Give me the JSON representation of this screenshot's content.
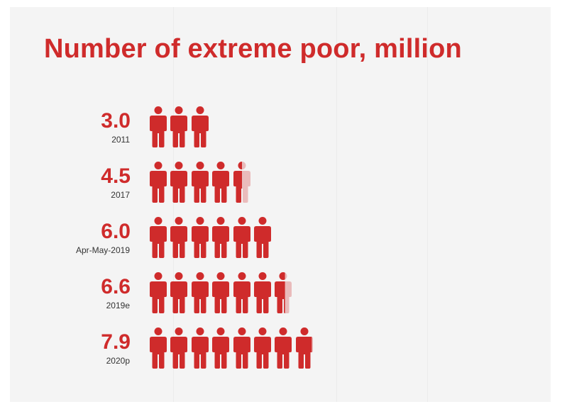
{
  "colors": {
    "accent": "#cf2b2b",
    "label": "#333333",
    "background": "#f4f4f4"
  },
  "icons": {
    "unit": "person-icon"
  },
  "chart_data": {
    "type": "pictogram",
    "title": "Number of extreme poor, million",
    "unit": "million",
    "icon_value": 1,
    "categories": [
      "2011",
      "2017",
      "Apr-May-2019",
      "2019e",
      "2020p"
    ],
    "values": [
      3.0,
      4.5,
      6.0,
      6.6,
      7.9
    ],
    "value_labels": [
      "3.0",
      "4.5",
      "6.0",
      "6.6",
      "7.9"
    ]
  }
}
